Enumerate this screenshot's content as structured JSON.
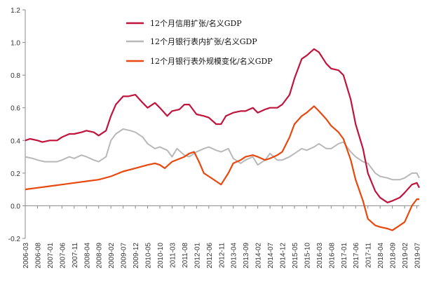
{
  "chart_data": {
    "type": "line",
    "ylim": [
      -0.2,
      1.2
    ],
    "yticks": [
      "1.2",
      "1.0",
      "0.8",
      "0.6",
      "0.4",
      "0.2",
      "0.0",
      "-0.2"
    ],
    "xticks": [
      "2006-03",
      "2006-08",
      "2007-01",
      "2007-06",
      "2007-11",
      "2008-04",
      "2008-09",
      "2009-02",
      "2009-07",
      "2009-12",
      "2010-05",
      "2010-10",
      "2011-03",
      "2011-08",
      "2012-01",
      "2012-06",
      "2012-11",
      "2013-04",
      "2013-09",
      "2014-02",
      "2014-07",
      "2014-12",
      "2015-05",
      "2015-10",
      "2016-03",
      "2016-08",
      "2017-01",
      "2017-06",
      "2017-11",
      "2018-04",
      "2018-09",
      "2019-02",
      "2019-07"
    ],
    "grid": false,
    "legend_position": "top",
    "series": [
      {
        "name": "12个月信用扩张/名义GDP",
        "color": "#c0143c",
        "points": [
          [
            "2006-03",
            0.4
          ],
          [
            "2006-05",
            0.41
          ],
          [
            "2006-08",
            0.4
          ],
          [
            "2006-10",
            0.39
          ],
          [
            "2007-01",
            0.4
          ],
          [
            "2007-04",
            0.4
          ],
          [
            "2007-06",
            0.42
          ],
          [
            "2007-09",
            0.44
          ],
          [
            "2007-11",
            0.44
          ],
          [
            "2008-02",
            0.45
          ],
          [
            "2008-04",
            0.46
          ],
          [
            "2008-07",
            0.45
          ],
          [
            "2008-09",
            0.43
          ],
          [
            "2008-12",
            0.46
          ],
          [
            "2009-02",
            0.55
          ],
          [
            "2009-04",
            0.62
          ],
          [
            "2009-07",
            0.67
          ],
          [
            "2009-09",
            0.67
          ],
          [
            "2009-12",
            0.68
          ],
          [
            "2010-03",
            0.63
          ],
          [
            "2010-05",
            0.6
          ],
          [
            "2010-08",
            0.63
          ],
          [
            "2010-10",
            0.6
          ],
          [
            "2011-01",
            0.55
          ],
          [
            "2011-03",
            0.58
          ],
          [
            "2011-06",
            0.59
          ],
          [
            "2011-08",
            0.62
          ],
          [
            "2011-10",
            0.62
          ],
          [
            "2012-01",
            0.56
          ],
          [
            "2012-04",
            0.55
          ],
          [
            "2012-06",
            0.54
          ],
          [
            "2012-09",
            0.5
          ],
          [
            "2012-11",
            0.5
          ],
          [
            "2013-01",
            0.55
          ],
          [
            "2013-04",
            0.57
          ],
          [
            "2013-07",
            0.58
          ],
          [
            "2013-09",
            0.58
          ],
          [
            "2013-12",
            0.6
          ],
          [
            "2014-02",
            0.57
          ],
          [
            "2014-05",
            0.59
          ],
          [
            "2014-07",
            0.6
          ],
          [
            "2014-10",
            0.6
          ],
          [
            "2014-12",
            0.62
          ],
          [
            "2015-03",
            0.68
          ],
          [
            "2015-05",
            0.78
          ],
          [
            "2015-08",
            0.9
          ],
          [
            "2015-10",
            0.92
          ],
          [
            "2016-01",
            0.96
          ],
          [
            "2016-03",
            0.94
          ],
          [
            "2016-06",
            0.87
          ],
          [
            "2016-08",
            0.84
          ],
          [
            "2016-11",
            0.83
          ],
          [
            "2017-01",
            0.8
          ],
          [
            "2017-04",
            0.65
          ],
          [
            "2017-06",
            0.5
          ],
          [
            "2017-09",
            0.35
          ],
          [
            "2017-11",
            0.2
          ],
          [
            "2018-02",
            0.09
          ],
          [
            "2018-04",
            0.05
          ],
          [
            "2018-07",
            0.02
          ],
          [
            "2018-09",
            0.03
          ],
          [
            "2018-12",
            0.05
          ],
          [
            "2019-02",
            0.08
          ],
          [
            "2019-05",
            0.13
          ],
          [
            "2019-07",
            0.14
          ],
          [
            "2019-08",
            0.11
          ]
        ]
      },
      {
        "name": "12个月银行表内扩张/名义GDP",
        "color": "#b8b8b8",
        "points": [
          [
            "2006-03",
            0.3
          ],
          [
            "2006-06",
            0.29
          ],
          [
            "2006-08",
            0.28
          ],
          [
            "2006-11",
            0.27
          ],
          [
            "2007-01",
            0.27
          ],
          [
            "2007-04",
            0.27
          ],
          [
            "2007-06",
            0.28
          ],
          [
            "2007-09",
            0.3
          ],
          [
            "2007-11",
            0.29
          ],
          [
            "2008-02",
            0.31
          ],
          [
            "2008-04",
            0.3
          ],
          [
            "2008-07",
            0.28
          ],
          [
            "2008-09",
            0.27
          ],
          [
            "2008-12",
            0.3
          ],
          [
            "2009-02",
            0.4
          ],
          [
            "2009-04",
            0.44
          ],
          [
            "2009-07",
            0.47
          ],
          [
            "2009-10",
            0.46
          ],
          [
            "2009-12",
            0.45
          ],
          [
            "2010-03",
            0.42
          ],
          [
            "2010-05",
            0.38
          ],
          [
            "2010-08",
            0.35
          ],
          [
            "2010-10",
            0.36
          ],
          [
            "2011-01",
            0.34
          ],
          [
            "2011-03",
            0.3
          ],
          [
            "2011-05",
            0.35
          ],
          [
            "2011-08",
            0.31
          ],
          [
            "2011-10",
            0.3
          ],
          [
            "2012-01",
            0.33
          ],
          [
            "2012-04",
            0.35
          ],
          [
            "2012-06",
            0.36
          ],
          [
            "2012-09",
            0.34
          ],
          [
            "2012-11",
            0.33
          ],
          [
            "2013-02",
            0.35
          ],
          [
            "2013-04",
            0.29
          ],
          [
            "2013-07",
            0.26
          ],
          [
            "2013-09",
            0.28
          ],
          [
            "2013-12",
            0.3
          ],
          [
            "2014-02",
            0.25
          ],
          [
            "2014-05",
            0.28
          ],
          [
            "2014-07",
            0.32
          ],
          [
            "2014-10",
            0.28
          ],
          [
            "2014-12",
            0.28
          ],
          [
            "2015-03",
            0.3
          ],
          [
            "2015-05",
            0.32
          ],
          [
            "2015-08",
            0.35
          ],
          [
            "2015-10",
            0.34
          ],
          [
            "2016-01",
            0.36
          ],
          [
            "2016-03",
            0.38
          ],
          [
            "2016-06",
            0.35
          ],
          [
            "2016-08",
            0.35
          ],
          [
            "2016-11",
            0.38
          ],
          [
            "2017-01",
            0.39
          ],
          [
            "2017-04",
            0.33
          ],
          [
            "2017-06",
            0.3
          ],
          [
            "2017-09",
            0.27
          ],
          [
            "2017-11",
            0.26
          ],
          [
            "2018-02",
            0.2
          ],
          [
            "2018-04",
            0.18
          ],
          [
            "2018-07",
            0.17
          ],
          [
            "2018-09",
            0.16
          ],
          [
            "2018-12",
            0.16
          ],
          [
            "2019-02",
            0.17
          ],
          [
            "2019-05",
            0.2
          ],
          [
            "2019-07",
            0.2
          ],
          [
            "2019-08",
            0.17
          ]
        ]
      },
      {
        "name": "12个月银行表外规模变化/名义GDP",
        "color": "#e8480e",
        "points": [
          [
            "2006-03",
            0.1
          ],
          [
            "2006-08",
            0.11
          ],
          [
            "2007-01",
            0.12
          ],
          [
            "2007-06",
            0.13
          ],
          [
            "2007-11",
            0.14
          ],
          [
            "2008-04",
            0.15
          ],
          [
            "2008-09",
            0.16
          ],
          [
            "2009-02",
            0.18
          ],
          [
            "2009-07",
            0.21
          ],
          [
            "2009-12",
            0.23
          ],
          [
            "2010-05",
            0.25
          ],
          [
            "2010-08",
            0.26
          ],
          [
            "2010-10",
            0.25
          ],
          [
            "2010-12",
            0.23
          ],
          [
            "2011-03",
            0.27
          ],
          [
            "2011-08",
            0.3
          ],
          [
            "2011-10",
            0.32
          ],
          [
            "2011-12",
            0.33
          ],
          [
            "2012-02",
            0.27
          ],
          [
            "2012-04",
            0.2
          ],
          [
            "2012-06",
            0.18
          ],
          [
            "2012-09",
            0.15
          ],
          [
            "2012-11",
            0.13
          ],
          [
            "2013-02",
            0.2
          ],
          [
            "2013-04",
            0.26
          ],
          [
            "2013-07",
            0.28
          ],
          [
            "2013-09",
            0.3
          ],
          [
            "2013-12",
            0.31
          ],
          [
            "2014-02",
            0.3
          ],
          [
            "2014-05",
            0.28
          ],
          [
            "2014-07",
            0.29
          ],
          [
            "2014-10",
            0.31
          ],
          [
            "2014-12",
            0.33
          ],
          [
            "2015-03",
            0.42
          ],
          [
            "2015-05",
            0.5
          ],
          [
            "2015-08",
            0.55
          ],
          [
            "2015-10",
            0.57
          ],
          [
            "2016-01",
            0.61
          ],
          [
            "2016-03",
            0.58
          ],
          [
            "2016-06",
            0.53
          ],
          [
            "2016-08",
            0.49
          ],
          [
            "2016-11",
            0.45
          ],
          [
            "2017-01",
            0.41
          ],
          [
            "2017-04",
            0.28
          ],
          [
            "2017-06",
            0.16
          ],
          [
            "2017-09",
            0.03
          ],
          [
            "2017-11",
            -0.08
          ],
          [
            "2018-02",
            -0.12
          ],
          [
            "2018-04",
            -0.13
          ],
          [
            "2018-07",
            -0.14
          ],
          [
            "2018-09",
            -0.15
          ],
          [
            "2018-12",
            -0.12
          ],
          [
            "2019-02",
            -0.1
          ],
          [
            "2019-05",
            0.0
          ],
          [
            "2019-07",
            0.04
          ],
          [
            "2019-08",
            0.04
          ]
        ]
      }
    ]
  }
}
